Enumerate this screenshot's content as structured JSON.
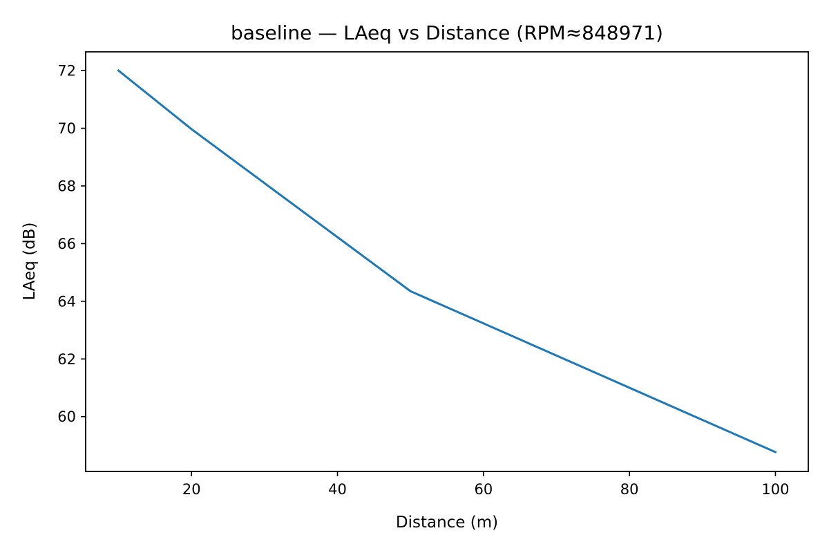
{
  "chart_data": {
    "type": "line",
    "title": "baseline — LAeq vs Distance (RPM≈848971)",
    "xlabel": "Distance (m)",
    "ylabel": "LAeq (dB)",
    "xlim": [
      5.5,
      104.5
    ],
    "ylim": [
      58.1,
      72.65
    ],
    "xticks": [
      20,
      40,
      60,
      80,
      100
    ],
    "yticks": [
      60,
      62,
      64,
      66,
      68,
      70,
      72
    ],
    "grid": false,
    "legend": "none",
    "series": [
      {
        "color": "#1f77b4",
        "x": [
          10,
          20,
          50,
          100
        ],
        "y": [
          72.0,
          69.97,
          64.35,
          58.77
        ]
      }
    ]
  }
}
